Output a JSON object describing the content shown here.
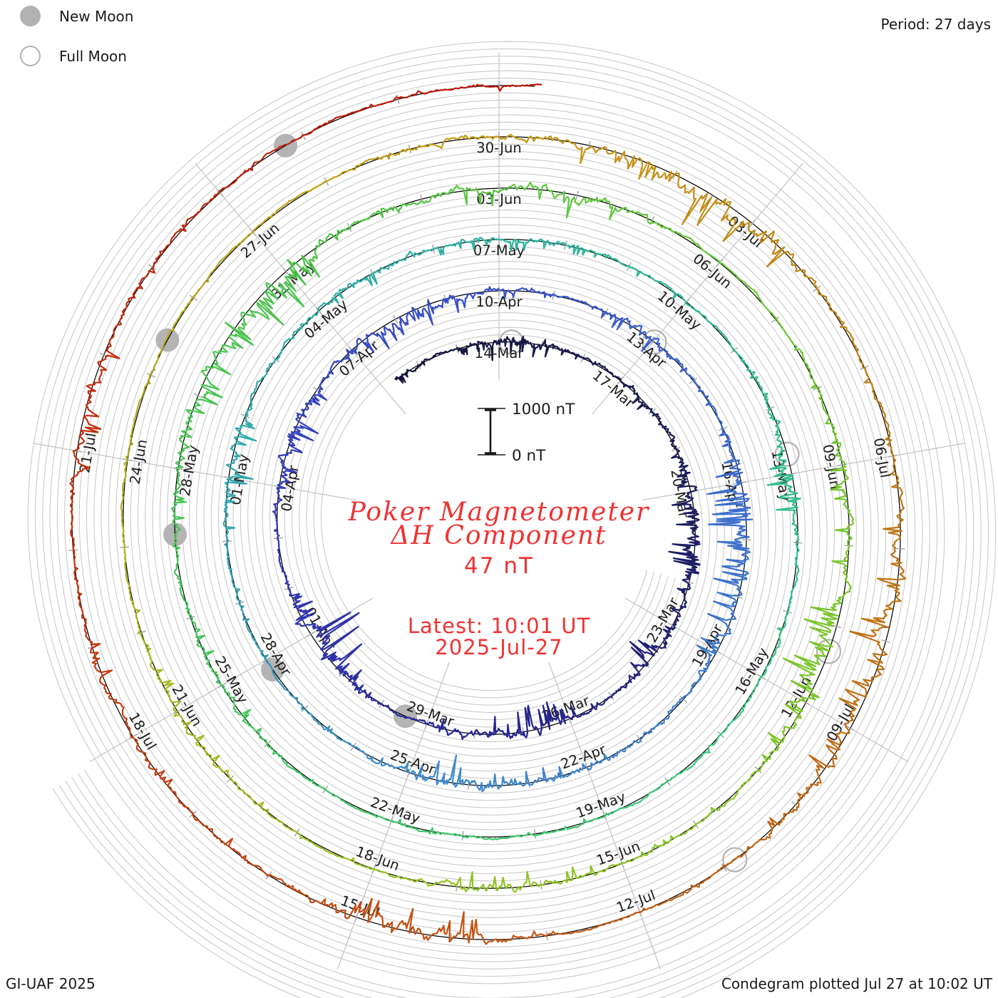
{
  "legend": {
    "new_moon": "New Moon",
    "full_moon": "Full Moon"
  },
  "footer": {
    "left": "GI-UAF 2025",
    "right": "Condegram plotted Jul 27 at 10:02 UT"
  },
  "chart_data": {
    "type": "condegram_polar_spiral",
    "title": "Poker Magnetometer",
    "subtitle": "ΔH Component",
    "current_value": "47 nT",
    "latest_time": "Latest: 10:01 UT",
    "latest_date": "2025-Jul-27",
    "period_label": "Period: 27 days",
    "period_days": 27,
    "scale": {
      "top_label": "1000 nT",
      "bottom_label": "0 nT",
      "span_nT": 1000
    },
    "data_span": {
      "start_date": "2025-Mar-11",
      "end_date": "2025-Jul-27 10:01 UT",
      "start_doy": 70.35,
      "end_doy": 208.417
    },
    "trace": "1-min ground magnetometer ΔH noise; quiet level ~+10..+45 nT with substorm bays to ~-1000 nT; latest sample 47 nT",
    "date_labels": [
      {
        "label": "14-Mar",
        "doy": 73
      },
      {
        "label": "17-Mar",
        "doy": 76
      },
      {
        "label": "20-Mar",
        "doy": 79
      },
      {
        "label": "23-Mar",
        "doy": 82
      },
      {
        "label": "26-Mar",
        "doy": 85
      },
      {
        "label": "29-Mar",
        "doy": 88
      },
      {
        "label": "01-Apr",
        "doy": 91
      },
      {
        "label": "04-Apr",
        "doy": 94
      },
      {
        "label": "07-Apr",
        "doy": 97
      },
      {
        "label": "10-Apr",
        "doy": 100
      },
      {
        "label": "13-Apr",
        "doy": 103
      },
      {
        "label": "16-Apr",
        "doy": 106
      },
      {
        "label": "19-Apr",
        "doy": 109
      },
      {
        "label": "22-Apr",
        "doy": 112
      },
      {
        "label": "25-Apr",
        "doy": 115
      },
      {
        "label": "28-Apr",
        "doy": 118
      },
      {
        "label": "01-May",
        "doy": 121
      },
      {
        "label": "04-May",
        "doy": 124
      },
      {
        "label": "07-May",
        "doy": 127
      },
      {
        "label": "10-May",
        "doy": 130
      },
      {
        "label": "13-May",
        "doy": 133
      },
      {
        "label": "16-May",
        "doy": 136
      },
      {
        "label": "19-May",
        "doy": 139
      },
      {
        "label": "22-May",
        "doy": 142
      },
      {
        "label": "25-May",
        "doy": 145
      },
      {
        "label": "28-May",
        "doy": 148
      },
      {
        "label": "31-May",
        "doy": 151
      },
      {
        "label": "03-Jun",
        "doy": 154
      },
      {
        "label": "06-Jun",
        "doy": 157
      },
      {
        "label": "09-Jun",
        "doy": 160
      },
      {
        "label": "12-Jun",
        "doy": 163
      },
      {
        "label": "15-Jun",
        "doy": 166
      },
      {
        "label": "18-Jun",
        "doy": 169
      },
      {
        "label": "21-Jun",
        "doy": 172
      },
      {
        "label": "24-Jun",
        "doy": 175
      },
      {
        "label": "27-Jun",
        "doy": 178
      },
      {
        "label": "30-Jun",
        "doy": 181
      },
      {
        "label": "03-Jul",
        "doy": 184
      },
      {
        "label": "06-Jul",
        "doy": 187
      },
      {
        "label": "09-Jul",
        "doy": 190
      },
      {
        "label": "12-Jul",
        "doy": 193
      },
      {
        "label": "15-Jul",
        "doy": 196
      },
      {
        "label": "18-Jul",
        "doy": 199
      },
      {
        "label": "21-Jul",
        "doy": 202
      }
    ],
    "moon_events": [
      {
        "phase": "full",
        "date": "2025-Mar-14",
        "doy": 73.29
      },
      {
        "phase": "new",
        "date": "2025-Mar-29",
        "doy": 88.46
      },
      {
        "phase": "full",
        "date": "2025-Apr-13",
        "doy": 103.02
      },
      {
        "phase": "new",
        "date": "2025-Apr-27",
        "doy": 117.81
      },
      {
        "phase": "full",
        "date": "2025-May-12",
        "doy": 132.71
      },
      {
        "phase": "new",
        "date": "2025-May-27",
        "doy": 147.13
      },
      {
        "phase": "full",
        "date": "2025-Jun-11",
        "doy": 162.32
      },
      {
        "phase": "new",
        "date": "2025-Jun-25",
        "doy": 176.44
      },
      {
        "phase": "full",
        "date": "2025-Jul-10",
        "doy": 191.86
      },
      {
        "phase": "new",
        "date": "2025-Jul-24",
        "doy": 205.8
      }
    ],
    "color_stops": [
      {
        "doy": 70,
        "color": "#16163a"
      },
      {
        "doy": 80,
        "color": "#1d1d62"
      },
      {
        "doy": 88,
        "color": "#29299a"
      },
      {
        "doy": 95,
        "color": "#3340bb"
      },
      {
        "doy": 100,
        "color": "#3a52c8"
      },
      {
        "doy": 109,
        "color": "#3c78cd"
      },
      {
        "doy": 115,
        "color": "#4089c8"
      },
      {
        "doy": 121,
        "color": "#2fa8ad"
      },
      {
        "doy": 127,
        "color": "#2cb2a0"
      },
      {
        "doy": 133,
        "color": "#30bc8d"
      },
      {
        "doy": 139,
        "color": "#3ec973"
      },
      {
        "doy": 145,
        "color": "#42c65a"
      },
      {
        "doy": 151,
        "color": "#4cc34c"
      },
      {
        "doy": 157,
        "color": "#68c836"
      },
      {
        "doy": 163,
        "color": "#7ec42a"
      },
      {
        "doy": 169,
        "color": "#97c322"
      },
      {
        "doy": 175,
        "color": "#b2ac1c"
      },
      {
        "doy": 181,
        "color": "#c89a16"
      },
      {
        "doy": 187,
        "color": "#bd7a16"
      },
      {
        "doy": 193,
        "color": "#c25c12"
      },
      {
        "doy": 199,
        "color": "#c43c0e"
      },
      {
        "doy": 205,
        "color": "#c2220a"
      },
      {
        "doy": 209,
        "color": "#bd1606"
      }
    ],
    "grid": {
      "sub_lines_per_ring": 6,
      "radial_lines": 9,
      "tick_every_days": 1,
      "label_every_days": 3
    }
  }
}
